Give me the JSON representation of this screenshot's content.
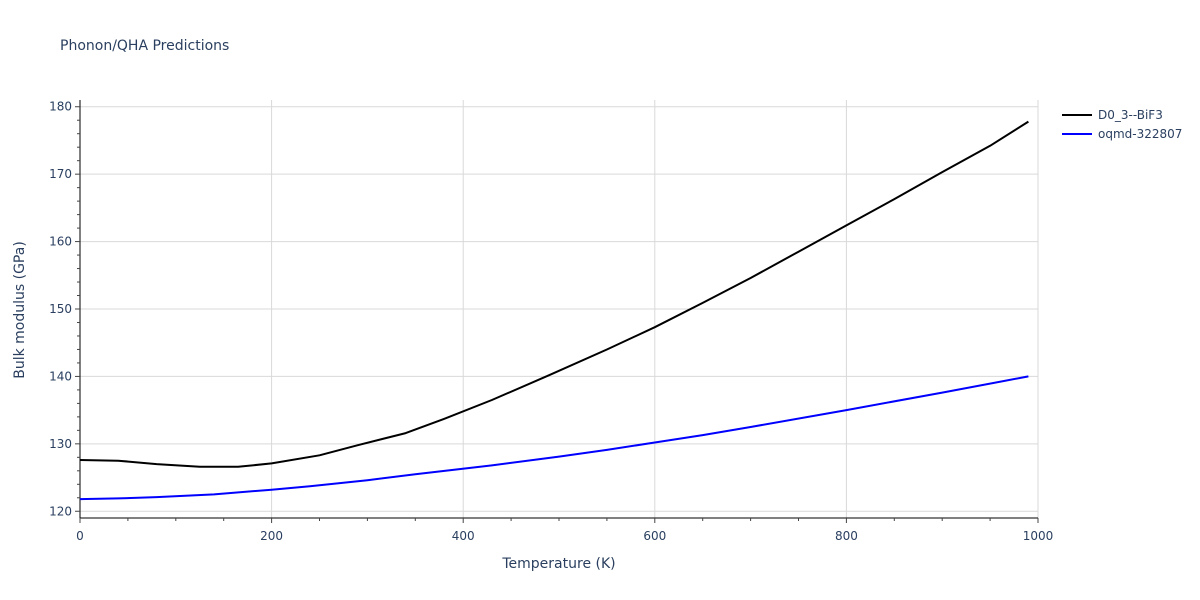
{
  "chart_data": {
    "type": "line",
    "title": "Phonon/QHA Predictions",
    "xlabel": "Temperature (K)",
    "ylabel": "Bulk modulus (GPa)",
    "xlim": [
      0,
      1000
    ],
    "ylim": [
      119,
      181
    ],
    "x_ticks": [
      0,
      200,
      400,
      600,
      800,
      1000
    ],
    "x_tick_labels": [
      "0",
      "200",
      "400",
      "600",
      "800",
      "1000"
    ],
    "y_ticks": [
      120,
      130,
      140,
      150,
      160,
      170,
      180
    ],
    "y_tick_labels": [
      "120",
      "130",
      "140",
      "150",
      "160",
      "170",
      "180"
    ],
    "grid": true,
    "legend_position": "top-right",
    "series": [
      {
        "name": "D0_3--BiF3",
        "color": "#000000",
        "x": [
          0,
          40,
          80,
          125,
          165,
          200,
          250,
          290,
          340,
          380,
          430,
          490,
          550,
          600,
          650,
          700,
          750,
          800,
          850,
          900,
          950,
          990
        ],
        "y": [
          127.6,
          127.5,
          127.0,
          126.6,
          126.6,
          127.1,
          128.3,
          129.8,
          131.6,
          133.7,
          136.5,
          140.2,
          144.0,
          147.3,
          150.9,
          154.6,
          158.5,
          162.4,
          166.3,
          170.3,
          174.2,
          177.8
        ]
      },
      {
        "name": "oqmd-322807",
        "color": "#0000ff",
        "x": [
          0,
          40,
          80,
          140,
          200,
          240,
          300,
          350,
          430,
          500,
          550,
          600,
          650,
          700,
          800,
          900,
          990
        ],
        "y": [
          121.8,
          121.9,
          122.1,
          122.5,
          123.2,
          123.7,
          124.6,
          125.5,
          126.8,
          128.1,
          129.1,
          130.2,
          131.3,
          132.5,
          135.0,
          137.6,
          140.0
        ]
      }
    ]
  }
}
